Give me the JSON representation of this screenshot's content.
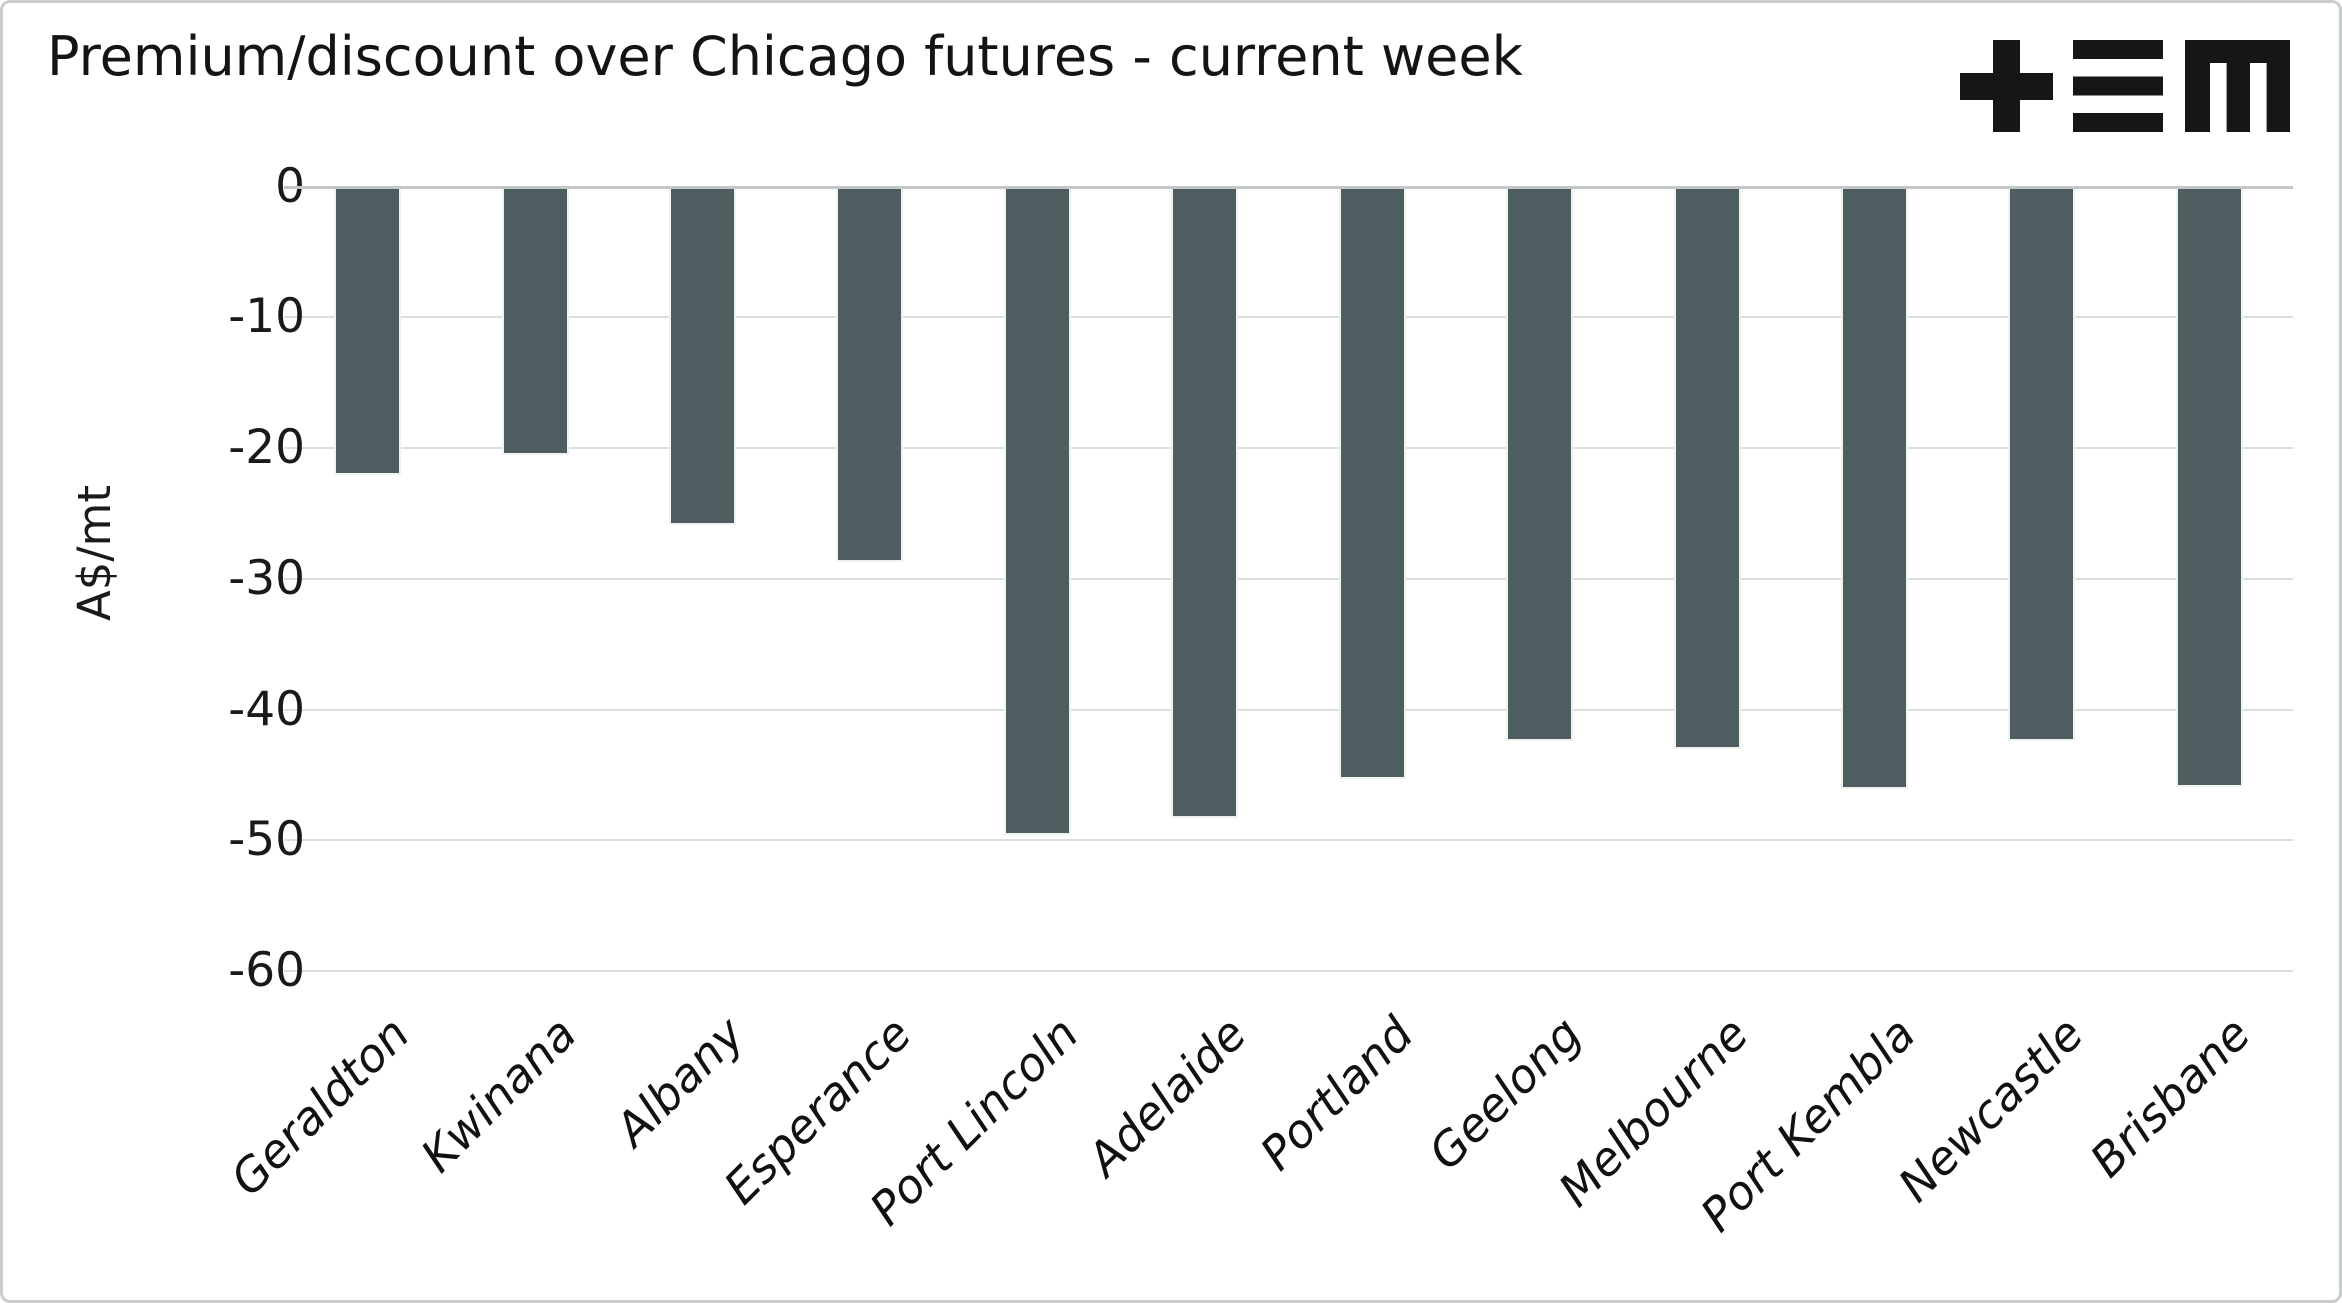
{
  "header": {
    "title": "Premium/discount over Chicago futures - current week",
    "logo": "tem-logo"
  },
  "chart_data": {
    "type": "bar",
    "title": "Premium/discount over Chicago futures - current week",
    "xlabel": "",
    "ylabel": "A$/mt",
    "ylim": [
      -60,
      0
    ],
    "yticks": [
      0,
      -10,
      -20,
      -30,
      -40,
      -50,
      -60
    ],
    "grid": true,
    "legend": false,
    "categories": [
      "Geraldton",
      "Kwinana",
      "Albany",
      "Esperance",
      "Port Lincoln",
      "Adelaide",
      "Portland",
      "Geelong",
      "Melbourne",
      "Port Kembla",
      "Newcastle",
      "Brisbane"
    ],
    "values": [
      -22.1,
      -20.5,
      -25.9,
      -28.7,
      -49.6,
      -48.3,
      -45.3,
      -42.4,
      -43.0,
      -46.1,
      -42.4,
      -45.9
    ],
    "series_name": "Premium/discount over Chicago futures (A$/mt)"
  },
  "colors": {
    "bar": "#4d5d60",
    "gridline": "#dcdddd",
    "zero_line": "#c4c7c7",
    "logo": "#161616",
    "text": "#141414"
  }
}
